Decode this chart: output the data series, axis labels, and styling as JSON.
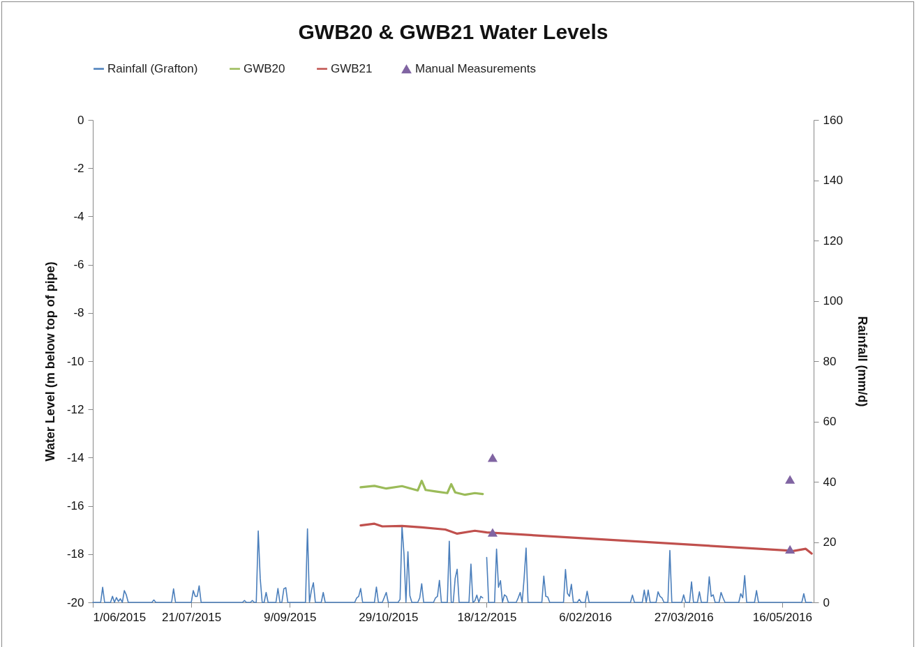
{
  "chart_data": {
    "type": "line",
    "title": "GWB20 & GWB21 Water Levels",
    "ylabel": "Water Level (m below top of pipe)",
    "y2label": "Rainfall (mm/d)",
    "xlim": [
      "2015-06-01",
      "2016-06-01"
    ],
    "xticks": [
      {
        "value": "2015-06-01",
        "label": "1/06/2015"
      },
      {
        "value": "2015-07-21",
        "label": "21/07/2015"
      },
      {
        "value": "2015-09-09",
        "label": "9/09/2015"
      },
      {
        "value": "2015-10-29",
        "label": "29/10/2015"
      },
      {
        "value": "2015-12-18",
        "label": "18/12/2015"
      },
      {
        "value": "2016-02-06",
        "label": "6/02/2016"
      },
      {
        "value": "2016-03-27",
        "label": "27/03/2016"
      },
      {
        "value": "2016-05-16",
        "label": "16/05/2016"
      }
    ],
    "ylim": [
      -20,
      0
    ],
    "yticks": [
      -20,
      -18,
      -16,
      -14,
      -12,
      -10,
      -8,
      -6,
      -4,
      -2,
      0
    ],
    "y2lim": [
      0,
      160
    ],
    "y2ticks": [
      0,
      20,
      40,
      60,
      80,
      100,
      120,
      140,
      160
    ],
    "grid": false,
    "legend": "top",
    "series": [
      {
        "name": "Rainfall (Grafton)",
        "axis": "y2",
        "color": "#4a7ebb",
        "x": [
          "2015-06-01",
          "2015-06-05",
          "2015-06-06",
          "2015-06-07",
          "2015-06-10",
          "2015-06-11",
          "2015-06-12",
          "2015-06-13",
          "2015-06-14",
          "2015-06-15",
          "2015-06-16",
          "2015-06-17",
          "2015-06-18",
          "2015-06-19",
          "2015-07-01",
          "2015-07-02",
          "2015-07-03",
          "2015-07-11",
          "2015-07-12",
          "2015-07-13",
          "2015-07-21",
          "2015-07-22",
          "2015-07-23",
          "2015-07-24",
          "2015-07-25",
          "2015-07-26",
          "2015-08-16",
          "2015-08-17",
          "2015-08-18",
          "2015-08-20",
          "2015-08-21",
          "2015-08-22",
          "2015-08-23",
          "2015-08-24",
          "2015-08-25",
          "2015-08-26",
          "2015-08-27",
          "2015-08-28",
          "2015-08-29",
          "2015-09-02",
          "2015-09-03",
          "2015-09-04",
          "2015-09-05",
          "2015-09-06",
          "2015-09-07",
          "2015-09-08",
          "2015-09-17",
          "2015-09-18",
          "2015-09-19",
          "2015-09-20",
          "2015-09-21",
          "2015-09-22",
          "2015-09-25",
          "2015-09-26",
          "2015-09-27",
          "2015-10-12",
          "2015-10-13",
          "2015-10-14",
          "2015-10-15",
          "2015-10-16",
          "2015-10-22",
          "2015-10-23",
          "2015-10-24",
          "2015-10-26",
          "2015-10-28",
          "2015-10-29",
          "2015-11-03",
          "2015-11-04",
          "2015-11-05",
          "2015-11-06",
          "2015-11-07",
          "2015-11-08",
          "2015-11-09",
          "2015-11-10",
          "2015-11-13",
          "2015-11-14",
          "2015-11-15",
          "2015-11-16",
          "2015-11-21",
          "2015-11-22",
          "2015-11-23",
          "2015-11-24",
          "2015-11-25",
          "2015-11-28",
          "2015-11-29",
          "2015-11-30",
          "2015-12-01",
          "2015-12-02",
          "2015-12-03",
          "2015-12-04",
          "2015-12-09",
          "2015-12-10",
          "2015-12-11",
          "2015-12-12",
          "2015-12-13",
          "2015-12-14",
          "2015-12-15",
          "2015-12-16",
          "2015-12-17",
          "2015-12-18",
          "2015-12-19",
          "2015-12-22",
          "2015-12-23",
          "2015-12-24",
          "2015-12-25",
          "2015-12-26",
          "2015-12-27",
          "2015-12-28",
          "2015-12-29",
          "2016-01-02",
          "2016-01-03",
          "2016-01-04",
          "2016-01-05",
          "2016-01-06",
          "2016-01-07",
          "2016-01-08",
          "2016-01-15",
          "2016-01-16",
          "2016-01-17",
          "2016-01-18",
          "2016-01-19",
          "2016-01-26",
          "2016-01-27",
          "2016-01-28",
          "2016-01-29",
          "2016-01-30",
          "2016-01-31",
          "2016-02-02",
          "2016-02-03",
          "2016-02-04",
          "2016-02-06",
          "2016-02-07",
          "2016-02-08",
          "2016-02-29",
          "2016-03-01",
          "2016-03-02",
          "2016-03-06",
          "2016-03-07",
          "2016-03-08",
          "2016-03-09",
          "2016-03-10",
          "2016-03-13",
          "2016-03-14",
          "2016-03-15",
          "2016-03-16",
          "2016-03-17",
          "2016-03-19",
          "2016-03-20",
          "2016-03-21",
          "2016-03-26",
          "2016-03-27",
          "2016-03-28",
          "2016-03-30",
          "2016-03-31",
          "2016-04-01",
          "2016-04-03",
          "2016-04-04",
          "2016-04-05",
          "2016-04-08",
          "2016-04-09",
          "2016-04-10",
          "2016-04-11",
          "2016-04-12",
          "2016-04-14",
          "2016-04-15",
          "2016-04-16",
          "2016-04-17",
          "2016-04-24",
          "2016-04-25",
          "2016-04-26",
          "2016-04-27",
          "2016-04-28",
          "2016-05-02",
          "2016-05-03",
          "2016-05-04",
          "2016-05-26",
          "2016-05-27",
          "2016-05-28",
          "2016-05-31"
        ],
        "values": [
          0,
          0,
          5,
          0,
          0,
          2,
          0,
          1.6,
          0.3,
          1.2,
          0,
          3.9,
          2.5,
          0,
          0,
          0.8,
          0,
          0,
          4.5,
          0,
          0,
          3.9,
          2,
          2,
          5.5,
          0,
          0,
          0.6,
          0,
          0,
          0.6,
          0,
          0,
          23.7,
          8,
          0,
          0,
          3.3,
          0,
          0,
          4.6,
          0,
          0,
          4.5,
          4.9,
          0,
          0,
          24.4,
          0,
          4,
          6.5,
          0,
          0,
          3.3,
          0,
          0,
          1.5,
          2,
          4.6,
          0,
          0,
          5.1,
          0,
          0,
          3.3,
          0,
          0,
          1,
          25.3,
          16,
          0,
          16.8,
          2.2,
          0,
          0,
          1.5,
          6.2,
          0,
          0,
          1.5,
          2,
          7.3,
          0,
          0,
          20.3,
          0,
          0,
          8,
          11,
          0,
          0,
          12.7,
          0,
          0.5,
          2.4,
          0,
          2,
          1.5,
          null,
          14.9,
          0,
          0,
          17.7,
          5,
          7.2,
          0,
          2.5,
          2,
          0,
          0,
          1.5,
          3.3,
          0,
          8,
          18,
          0,
          0,
          8.7,
          2,
          1.8,
          0,
          0,
          10.9,
          3,
          2,
          6,
          0,
          0,
          1,
          0,
          0,
          3.7,
          0,
          0,
          2.4,
          0,
          0,
          4.1,
          0,
          4.1,
          0,
          0,
          3.5,
          2,
          1.5,
          0,
          0,
          17.2,
          0,
          0,
          2.5,
          0,
          0,
          6.8,
          0,
          0,
          3.5,
          0,
          0,
          8.5,
          2,
          2.5,
          0,
          0,
          3.3,
          1.5,
          0,
          0,
          2.9,
          1.5,
          8.9,
          0,
          0,
          3.9,
          0,
          0,
          2.9,
          0,
          0
        ]
      },
      {
        "name": "GWB20",
        "color": "#9bbb59",
        "x": [
          "2015-10-15",
          "2015-10-22",
          "2015-10-28",
          "2015-11-05",
          "2015-11-13",
          "2015-11-15",
          "2015-11-17",
          "2015-11-22",
          "2015-11-28",
          "2015-11-30",
          "2015-12-02",
          "2015-12-07",
          "2015-12-12",
          "2015-12-16"
        ],
        "values": [
          -15.23,
          -15.17,
          -15.28,
          -15.18,
          -15.36,
          -14.96,
          -15.34,
          -15.4,
          -15.47,
          -15.1,
          -15.44,
          -15.54,
          -15.47,
          -15.51
        ]
      },
      {
        "name": "GWB21",
        "color": "#c0504d",
        "x": [
          "2015-10-15",
          "2015-10-22",
          "2015-10-26",
          "2015-11-05",
          "2015-11-15",
          "2015-11-27",
          "2015-12-03",
          "2015-12-12",
          "2015-12-18",
          "2016-05-19",
          "2016-05-21",
          "2016-05-28",
          "2016-05-31"
        ],
        "values": [
          -16.81,
          -16.74,
          -16.85,
          -16.83,
          -16.89,
          -16.98,
          -17.15,
          -17.03,
          -17.1,
          -17.85,
          -17.88,
          -17.78,
          -17.98
        ]
      },
      {
        "name": "Manual Measurements",
        "type": "scatter",
        "marker": "triangle",
        "color": "#8064a2",
        "x": [
          "2015-12-21",
          "2015-12-21",
          "2016-05-20",
          "2016-05-20"
        ],
        "values": [
          -14.0,
          -17.1,
          -14.9,
          -17.8
        ]
      }
    ]
  }
}
